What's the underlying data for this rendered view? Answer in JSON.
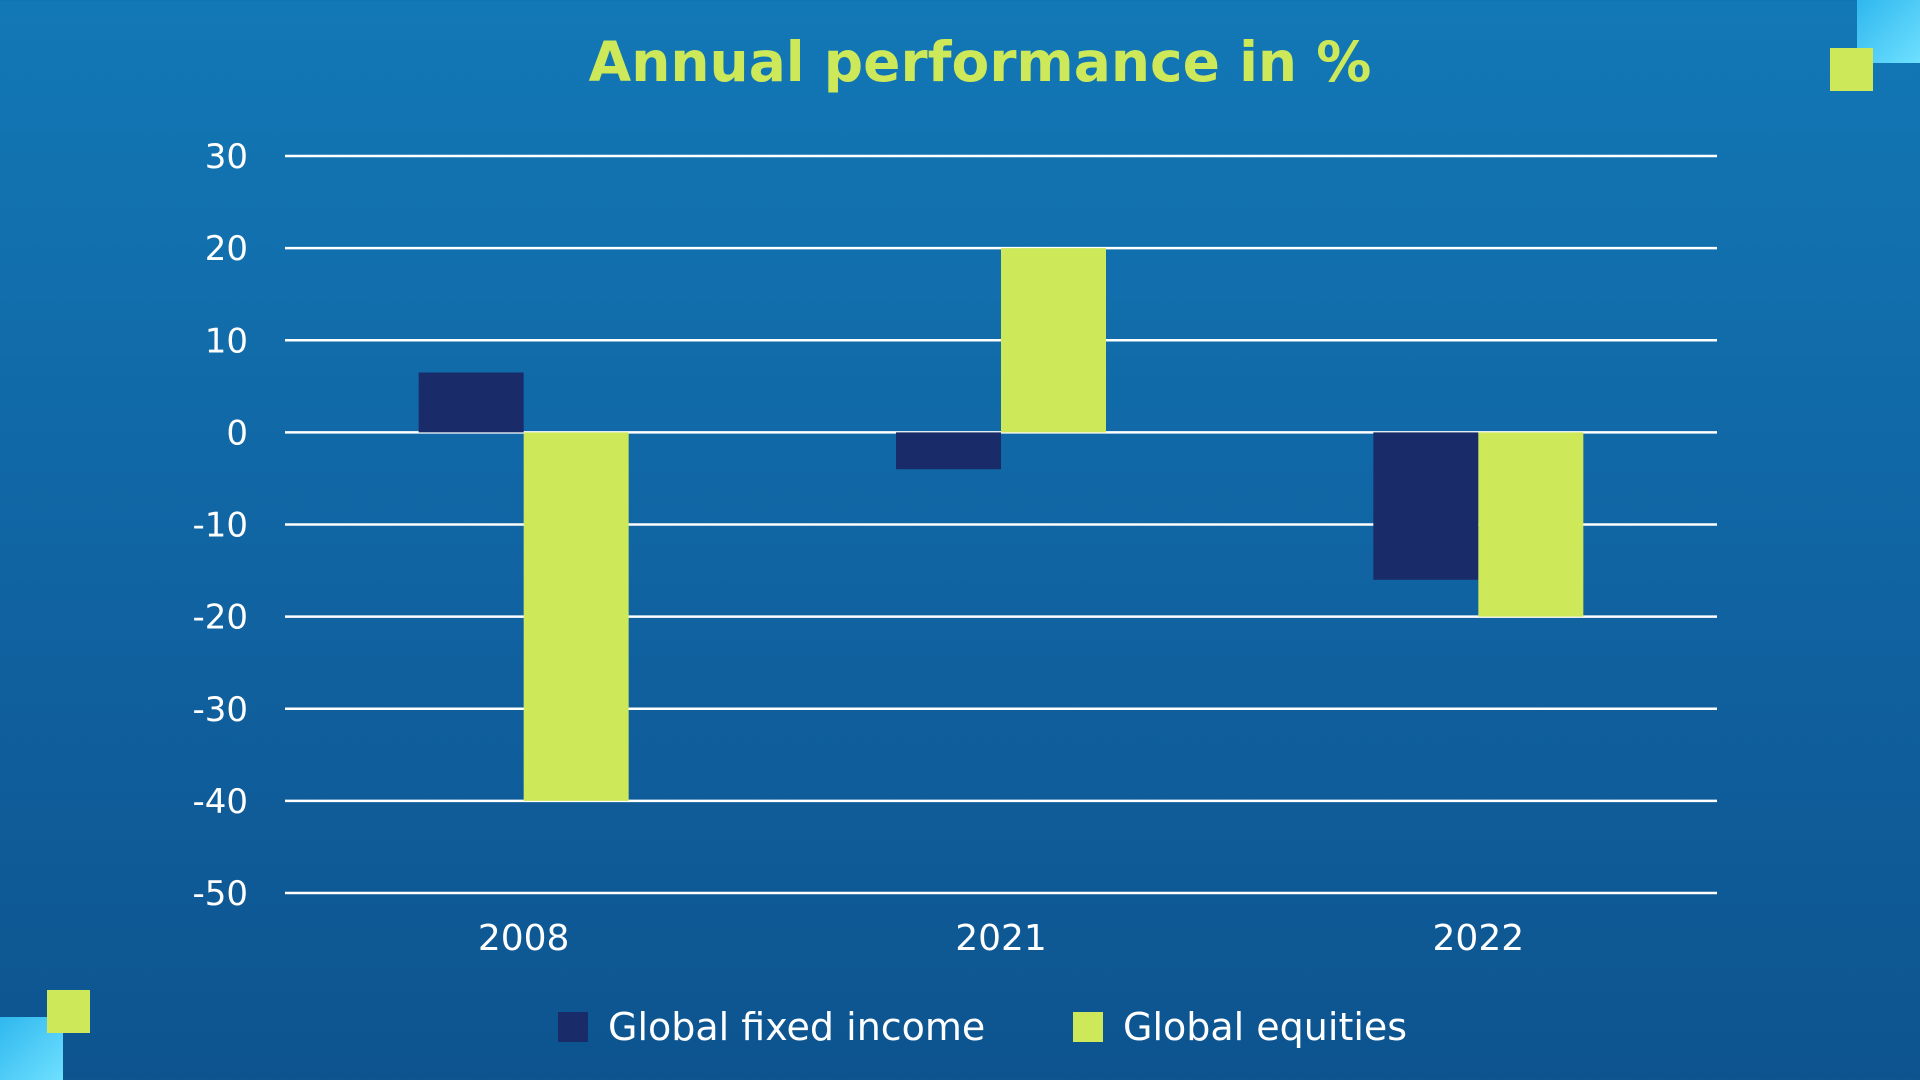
{
  "chart_data": {
    "type": "bar",
    "title": "Annual performance in %",
    "xlabel": "",
    "ylabel": "",
    "categories": [
      "2008",
      "2021",
      "2022"
    ],
    "series": [
      {
        "name": "Global fixed income",
        "values": [
          6.5,
          -4,
          -16
        ],
        "color": "#1a2b69"
      },
      {
        "name": "Global equities",
        "values": [
          -40,
          20,
          -20
        ],
        "color": "#cde858"
      }
    ],
    "ylim": [
      -50,
      30
    ],
    "yticks": [
      "30",
      "20",
      "10",
      "0",
      "-10",
      "-20",
      "-30",
      "-40",
      "-50"
    ],
    "grid": true,
    "legend_position": "bottom"
  },
  "colors": {
    "accent": "#cde858",
    "dark_navy": "#1a2b69",
    "gridline": "#ffffff",
    "deco_cyan": "#3fc7f2"
  }
}
